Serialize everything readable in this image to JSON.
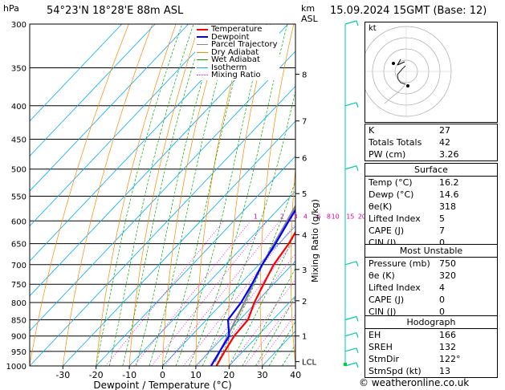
{
  "header": {
    "hpa_label": "hPa",
    "location": "54°23'N  18°28'E  88m  ASL",
    "km_label": "km",
    "asl_label": "ASL",
    "datetime": "15.09.2024  15GMT  (Base: 12)"
  },
  "footer": {
    "credit": "© weatheronline.co.uk"
  },
  "colors": {
    "temperature": "#ff0000",
    "dewpoint": "#0000ff",
    "parcel": "#888888",
    "dry_adiabat": "#ff8800",
    "wet_adiabat": "#00aa00",
    "isotherm": "#00aaff",
    "mixing_ratio": "#ff00ff",
    "wind": "#00ccaa"
  },
  "chart_data": {
    "type": "line",
    "xlabel": "Dewpoint / Temperature (°C)",
    "ylabel_right": "Mixing Ratio (g/kg)",
    "x_ticks": [
      "-30",
      "-20",
      "-10",
      "0",
      "10",
      "20",
      "30",
      "40"
    ],
    "xlim": [
      -40,
      40
    ],
    "pressure_levels": [
      300,
      350,
      400,
      450,
      500,
      550,
      600,
      650,
      700,
      750,
      800,
      850,
      900,
      950,
      1000
    ],
    "pressure_labels": [
      "300",
      "350",
      "400",
      "450",
      "500",
      "550",
      "600",
      "650",
      "700",
      "750",
      "800",
      "850",
      "900",
      "950",
      "1000"
    ],
    "km_marks": [
      {
        "label": "8",
        "p": 358
      },
      {
        "label": "7",
        "p": 422
      },
      {
        "label": "6",
        "p": 480
      },
      {
        "label": "5",
        "p": 545
      },
      {
        "label": "4",
        "p": 630
      },
      {
        "label": "3",
        "p": 712
      },
      {
        "label": "2",
        "p": 795
      },
      {
        "label": "1",
        "p": 900
      },
      {
        "label": "LCL",
        "p": 985
      }
    ],
    "mixing_ratio_labels": [
      {
        "label": "1",
        "t": -13.5
      },
      {
        "label": "2",
        "t": -5.5
      },
      {
        "label": "3",
        "t": -1.5
      },
      {
        "label": "4",
        "t": 1.5
      },
      {
        "label": "6",
        "t": 5.5
      },
      {
        "label": "8",
        "t": 8.5
      },
      {
        "label": "10",
        "t": 10.5
      },
      {
        "label": "15",
        "t": 15
      },
      {
        "label": "20",
        "t": 18.5
      },
      {
        "label": "25",
        "t": 21
      }
    ],
    "legend": [
      "Temperature",
      "Dewpoint",
      "Parcel Trajectory",
      "Dry Adiabat",
      "Wet Adiabat",
      "Isotherm",
      "Mixing Ratio"
    ],
    "series": [
      {
        "name": "Temperature",
        "p": [
          1000,
          950,
          900,
          850,
          800,
          750,
          700,
          650,
          600,
          550,
          500,
          450,
          400,
          350,
          300
        ],
        "t": [
          16.2,
          14.5,
          13.0,
          12.5,
          9.5,
          7.0,
          4.5,
          3.0,
          0.5,
          -3.0,
          -7.0,
          -11.5,
          -17.5,
          -25.5,
          -33.5
        ]
      },
      {
        "name": "Dewpoint",
        "p": [
          1000,
          950,
          900,
          850,
          800,
          750,
          700,
          650,
          600,
          550,
          500,
          450,
          400,
          350,
          300
        ],
        "t": [
          14.6,
          13.0,
          11.5,
          6.5,
          5.5,
          3.5,
          1.0,
          -1.0,
          -3.5,
          -6.0,
          -9.0,
          -13.5,
          -21.5,
          -36.0,
          -43.0
        ]
      },
      {
        "name": "Parcel Trajectory",
        "p": [
          985,
          900,
          800,
          700,
          600,
          500,
          450,
          400
        ],
        "t": [
          14.5,
          11.0,
          6.5,
          1.0,
          -4.0,
          -10.0,
          -14.0,
          -20.0
        ]
      }
    ]
  },
  "indices": {
    "rows": [
      {
        "label": "K",
        "value": "27"
      },
      {
        "label": "Totals Totals",
        "value": "42"
      },
      {
        "label": "PW (cm)",
        "value": "3.26"
      }
    ]
  },
  "surface": {
    "title": "Surface",
    "rows": [
      {
        "label": "Temp (°C)",
        "value": "16.2"
      },
      {
        "label": "Dewp (°C)",
        "value": "14.6"
      },
      {
        "label": "θe(K)",
        "value": "318"
      },
      {
        "label": "Lifted Index",
        "value": "5"
      },
      {
        "label": "CAPE (J)",
        "value": "7"
      },
      {
        "label": "CIN (J)",
        "value": "0"
      }
    ]
  },
  "most_unstable": {
    "title": "Most Unstable",
    "rows": [
      {
        "label": "Pressure (mb)",
        "value": "750"
      },
      {
        "label": "θe (K)",
        "value": "320"
      },
      {
        "label": "Lifted Index",
        "value": "4"
      },
      {
        "label": "CAPE (J)",
        "value": "0"
      },
      {
        "label": "CIN (J)",
        "value": "0"
      }
    ]
  },
  "hodograph": {
    "title": "Hodograph",
    "kt_label": "kt",
    "rows": [
      {
        "label": "EH",
        "value": "166"
      },
      {
        "label": "SREH",
        "value": "132"
      },
      {
        "label": "StmDir",
        "value": "122°"
      },
      {
        "label": "StmSpd (kt)",
        "value": "13"
      }
    ]
  }
}
